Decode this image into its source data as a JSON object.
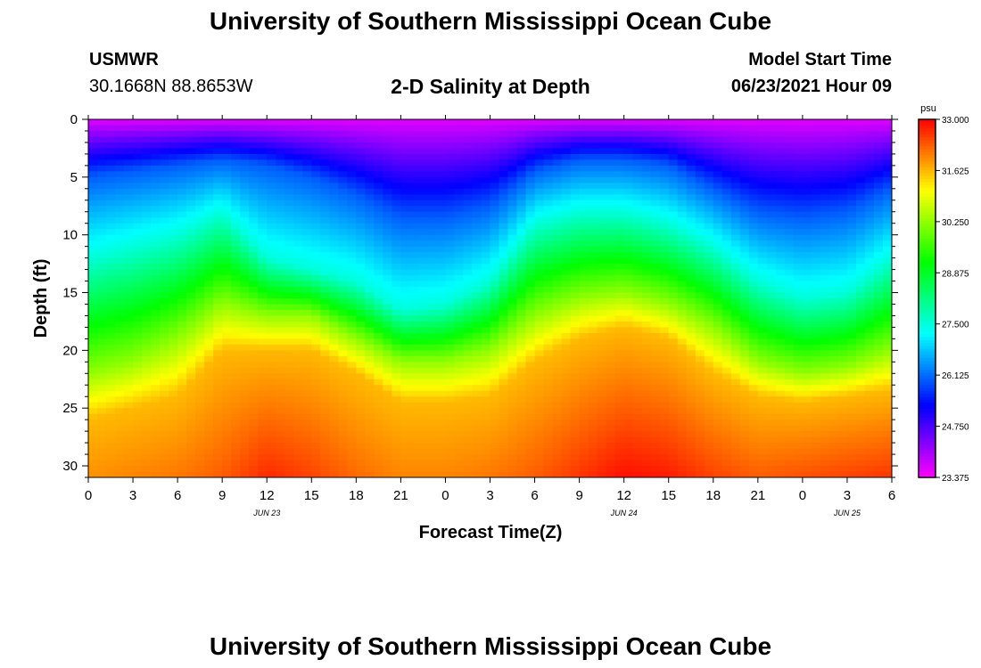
{
  "header": {
    "title": "University of Southern Mississippi Ocean Cube",
    "station": "USMWR",
    "coords": "30.1668N  88.8653W",
    "plot_title": "2-D Salinity at Depth",
    "model_label": "Model Start Time",
    "model_time": "06/23/2021 Hour 09"
  },
  "footer": {
    "title": "University of Southern Mississippi Ocean Cube"
  },
  "chart_data": {
    "type": "heatmap",
    "title": "2-D Salinity at Depth",
    "xlabel": "Forecast Time(Z)",
    "ylabel": "Depth (ft)",
    "x_range_hours": [
      0,
      54
    ],
    "x_tick_labels": [
      "0",
      "3",
      "6",
      "9",
      "12",
      "15",
      "18",
      "21",
      "0",
      "3",
      "6",
      "9",
      "12",
      "15",
      "18",
      "21",
      "0",
      "3",
      "6"
    ],
    "date_labels": [
      {
        "hour": 12,
        "label": "JUN 23"
      },
      {
        "hour": 36,
        "label": "JUN 24"
      },
      {
        "hour": 51,
        "label": "JUN 25"
      }
    ],
    "y_range_ft": [
      0,
      31
    ],
    "y_ticks": [
      0,
      5,
      10,
      15,
      20,
      25,
      30
    ],
    "colorbar": {
      "unit": "psu",
      "min": 23.375,
      "max": 33.0,
      "tick_labels": [
        "33.000",
        "31.625",
        "30.250",
        "28.875",
        "27.500",
        "26.125",
        "24.750",
        "23.375"
      ]
    },
    "layer_depths_ft": {
      "description": "approximate depth of salinity isolines vs forecast hour",
      "hours": [
        0,
        3,
        6,
        9,
        12,
        15,
        18,
        21,
        24,
        27,
        30,
        33,
        36,
        39,
        42,
        45,
        48,
        51,
        54
      ],
      "psu_26_0": [
        5,
        4.5,
        4,
        3.5,
        4,
        5,
        6.5,
        8.5,
        8.5,
        7.5,
        4.5,
        3.5,
        3.5,
        4,
        6,
        8,
        8.5,
        8,
        6
      ],
      "psu_27_5": [
        12,
        11,
        10,
        8,
        12,
        13,
        14,
        16.5,
        16,
        14,
        9,
        8,
        8,
        9,
        11,
        14,
        15.5,
        15,
        12
      ],
      "psu_30_25": [
        22,
        21,
        19,
        16,
        17,
        17,
        19,
        21,
        21,
        20,
        17,
        15.5,
        15,
        16,
        18,
        21,
        22,
        21.5,
        20
      ],
      "psu_31_6": [
        26,
        25,
        24,
        20,
        20,
        20,
        22,
        24.5,
        24.5,
        24,
        21,
        19,
        18,
        19,
        22,
        24,
        24.5,
        24,
        23.5
      ]
    },
    "peak_bottom_salinity_psu": [
      31.9,
      32.0,
      32.1,
      32.3,
      32.7,
      32.5,
      32.2,
      32.0,
      32.0,
      32.1,
      32.3,
      32.6,
      32.9,
      32.8,
      32.5,
      32.3,
      32.4,
      32.5,
      32.6
    ]
  }
}
